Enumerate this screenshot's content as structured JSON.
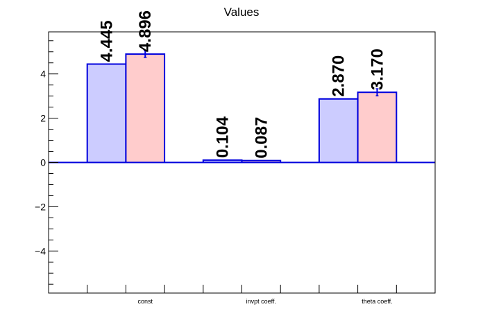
{
  "chart_data": {
    "type": "bar",
    "title": "Values",
    "xlabel": "",
    "ylabel": "",
    "categories": [
      "const",
      "invpt coeff.",
      "theta coeff."
    ],
    "series": [
      {
        "values": [
          4.445,
          0.104,
          2.87
        ],
        "errors": [
          0.0,
          0.0,
          0.0
        ],
        "labels": [
          "4.445",
          "0.104",
          "2.870"
        ],
        "fill": "#ccccff",
        "stroke": "#0000dd"
      },
      {
        "values": [
          4.896,
          0.087,
          3.17
        ],
        "errors": [
          0.15,
          0.0,
          0.16
        ],
        "labels": [
          "4.896",
          "0.087",
          "3.170"
        ],
        "fill": "#ffcccc",
        "stroke": "#0000dd"
      }
    ],
    "ylim": [
      -5.9,
      5.9
    ],
    "yticks": [
      -4,
      -2,
      0,
      2,
      4
    ],
    "ytick_labels": [
      "−4",
      "−2",
      "0",
      "2",
      "4"
    ],
    "grid": false,
    "legend": "none"
  }
}
